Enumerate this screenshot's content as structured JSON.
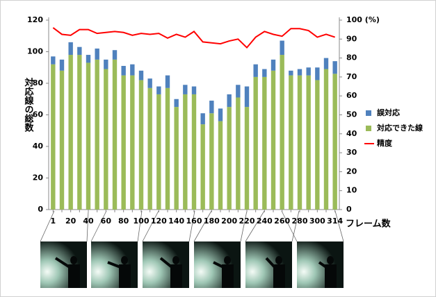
{
  "chart_data": {
    "type": "bar",
    "y_label": "対応線の総数",
    "x_label": "フレーム数",
    "categories": [
      "1",
      null,
      "20",
      null,
      "40",
      null,
      "60",
      null,
      "80",
      null,
      "100",
      null,
      "120",
      null,
      "140",
      null,
      "160",
      null,
      "180",
      null,
      "200",
      null,
      "220",
      null,
      "240",
      null,
      "260",
      null,
      "280",
      null,
      "300",
      null,
      "314"
    ],
    "series": [
      {
        "name": "誤対応",
        "color": "#4f81bd",
        "values": [
          5,
          7,
          8,
          5,
          5,
          7,
          6,
          6,
          6,
          7,
          6,
          6,
          5,
          8,
          5,
          6,
          5,
          7,
          8,
          8,
          8,
          8,
          13,
          8,
          5,
          7,
          9,
          3,
          4,
          5,
          8,
          7,
          8
        ]
      },
      {
        "name": "対応できた線",
        "color": "#9bbb59",
        "values": [
          92,
          88,
          98,
          98,
          93,
          95,
          89,
          95,
          85,
          85,
          82,
          77,
          73,
          77,
          65,
          73,
          73,
          54,
          61,
          56,
          65,
          71,
          65,
          84,
          84,
          88,
          98,
          85,
          85,
          85,
          82,
          89,
          86
        ]
      },
      {
        "name": "精度",
        "color": "#ff0000",
        "type": "line",
        "axis": "y2",
        "values": [
          96,
          92.5,
          92,
          95,
          95,
          93,
          93.5,
          94,
          93.5,
          92,
          93,
          92.5,
          93,
          90.5,
          92.5,
          91,
          94,
          88.5,
          88,
          87.5,
          89,
          90,
          85.5,
          91,
          94,
          92.5,
          91.5,
          95.5,
          95.5,
          94.5,
          91,
          92.5,
          91
        ]
      }
    ],
    "ylim": [
      0,
      120
    ],
    "yticks": [
      0,
      20,
      40,
      60,
      80,
      100,
      120
    ],
    "y2lim": [
      0,
      100
    ],
    "y2ticks": [
      0,
      10,
      20,
      30,
      40,
      50,
      60,
      70,
      80,
      90,
      {
        "value": 100,
        "label": "100 (%)"
      }
    ],
    "legend": "right"
  }
}
